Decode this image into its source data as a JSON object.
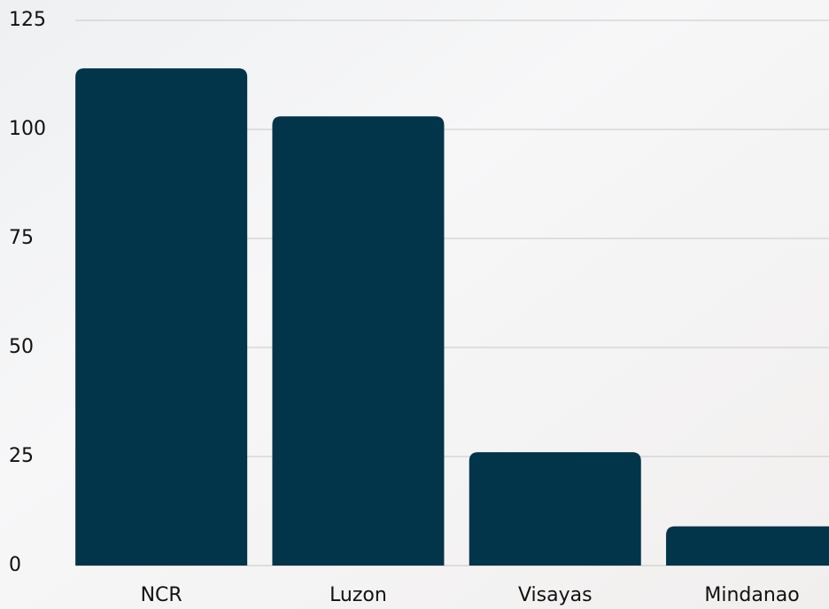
{
  "chart_data": {
    "type": "bar",
    "categories": [
      "NCR",
      "Luzon",
      "Visayas",
      "Mindanao"
    ],
    "values": [
      114,
      103,
      26,
      9
    ],
    "color": "#02344a",
    "ylim": [
      0,
      125
    ],
    "yticks": [
      0,
      25,
      50,
      75,
      100,
      125
    ],
    "grid": true
  }
}
